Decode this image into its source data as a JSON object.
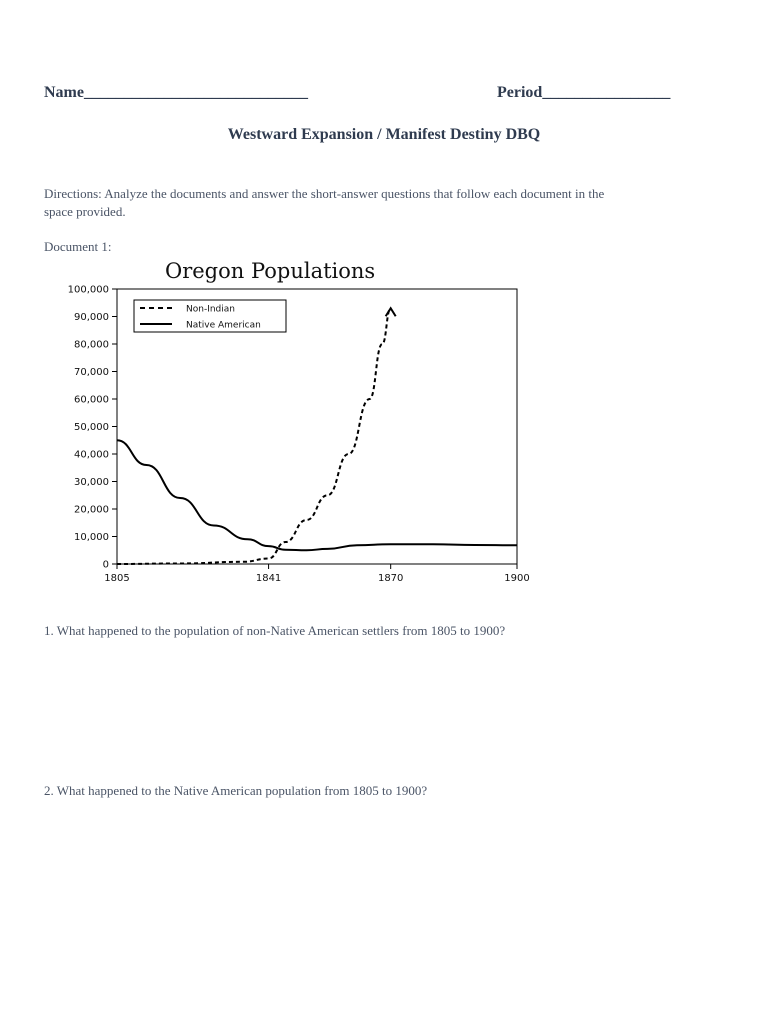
{
  "header": {
    "name_label": "Name",
    "name_blank": "____________________________",
    "period_label": "Period",
    "period_blank": "________________"
  },
  "title": "Westward Expansion / Manifest Destiny DBQ",
  "directions": {
    "line1": "Directions:  Analyze the documents and answer the short-answer questions that follow each document in the",
    "line2": "space provided."
  },
  "document_label": "Document 1:",
  "questions": [
    {
      "text": "1.  What happened to the population of non-Native American settlers from 1805 to 1900?"
    },
    {
      "text": "2.  What happened to the Native American population from 1805 to 1900?"
    }
  ],
  "chart_data": {
    "type": "line",
    "title": "Oregon Populations",
    "xlabel": "",
    "ylabel": "",
    "x_ticks": [
      "1805",
      "1841",
      "1870",
      "1900"
    ],
    "y_ticks": [
      "100,000",
      "90,000",
      "80,000",
      "70,000",
      "60,000",
      "50,000",
      "40,000",
      "30,000",
      "20,000",
      "10,000",
      "0"
    ],
    "xlim": [
      1805,
      1900
    ],
    "ylim": [
      0,
      100000
    ],
    "grid": false,
    "legend": "top-left",
    "series": [
      {
        "name": "Non-Indian",
        "style": "dashed",
        "color": "#000000",
        "points": [
          [
            1805,
            0
          ],
          [
            1820,
            200
          ],
          [
            1835,
            800
          ],
          [
            1841,
            2000
          ],
          [
            1845,
            8000
          ],
          [
            1850,
            16000
          ],
          [
            1855,
            25000
          ],
          [
            1860,
            40000
          ],
          [
            1865,
            60000
          ],
          [
            1868,
            80000
          ],
          [
            1870,
            93000
          ]
        ]
      },
      {
        "name": "Native American",
        "style": "solid",
        "color": "#000000",
        "points": [
          [
            1805,
            45000
          ],
          [
            1812,
            36000
          ],
          [
            1820,
            24000
          ],
          [
            1828,
            14000
          ],
          [
            1836,
            9000
          ],
          [
            1841,
            6500
          ],
          [
            1845,
            5200
          ],
          [
            1850,
            5000
          ],
          [
            1855,
            5500
          ],
          [
            1862,
            6800
          ],
          [
            1870,
            7200
          ],
          [
            1880,
            7200
          ],
          [
            1890,
            6900
          ],
          [
            1900,
            6800
          ]
        ]
      }
    ]
  }
}
